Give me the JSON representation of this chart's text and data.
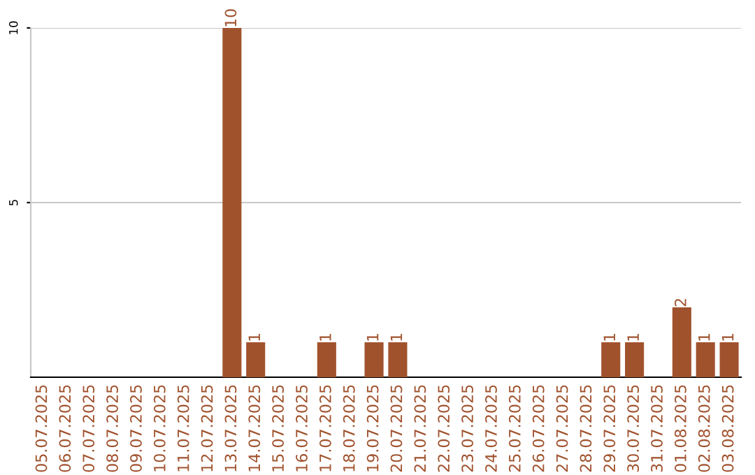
{
  "chart_data": {
    "type": "bar",
    "categories": [
      "05.07.2025",
      "06.07.2025",
      "07.07.2025",
      "08.07.2025",
      "09.07.2025",
      "10.07.2025",
      "11.07.2025",
      "12.07.2025",
      "13.07.2025",
      "14.07.2025",
      "15.07.2025",
      "16.07.2025",
      "17.07.2025",
      "18.07.2025",
      "19.07.2025",
      "20.07.2025",
      "21.07.2025",
      "22.07.2025",
      "23.07.2025",
      "24.07.2025",
      "25.07.2025",
      "26.07.2025",
      "27.07.2025",
      "28.07.2025",
      "29.07.2025",
      "30.07.2025",
      "31.07.2025",
      "01.08.2025",
      "02.08.2025",
      "03.08.2025"
    ],
    "values": [
      0,
      0,
      0,
      0,
      0,
      0,
      0,
      0,
      10,
      1,
      0,
      0,
      1,
      0,
      1,
      1,
      0,
      0,
      0,
      0,
      0,
      0,
      0,
      0,
      1,
      1,
      0,
      2,
      1,
      1
    ],
    "value_labels": [
      null,
      null,
      null,
      null,
      null,
      null,
      null,
      null,
      "10",
      "1",
      null,
      null,
      "1",
      null,
      "1",
      "1",
      null,
      null,
      null,
      null,
      null,
      null,
      null,
      null,
      "1",
      "1",
      null,
      "2",
      "1",
      "1"
    ],
    "color": "#a0522d",
    "ylim": [
      0,
      10
    ],
    "yticks": [
      5,
      10
    ],
    "grid": "y",
    "legend": false
  }
}
